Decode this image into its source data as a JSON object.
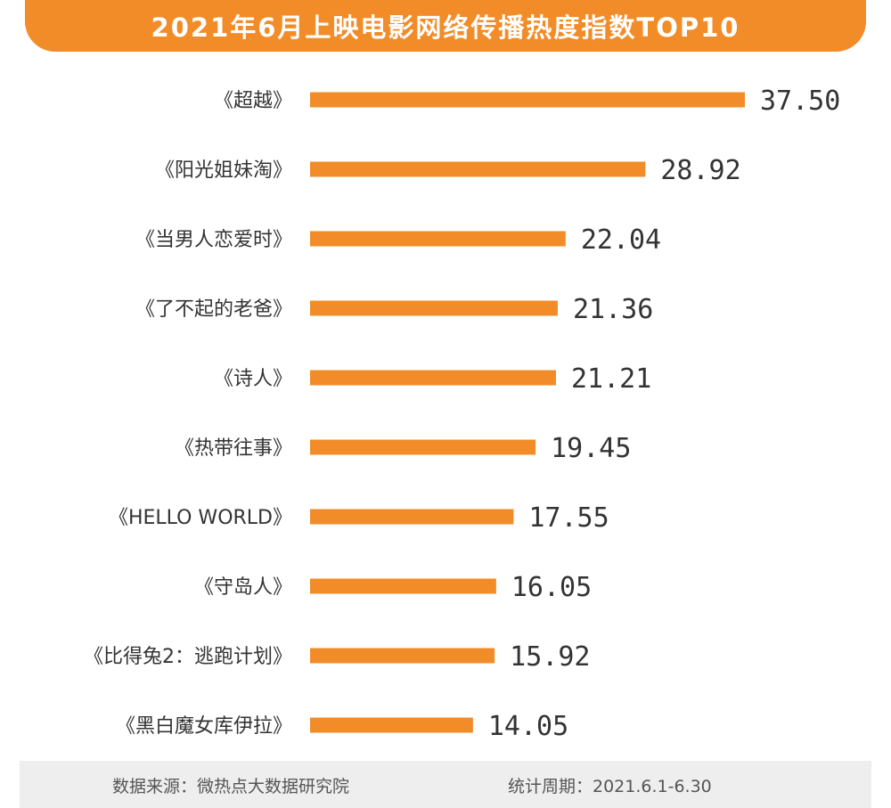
{
  "colors": {
    "accent": "#f28c28",
    "bar": "#f28c28",
    "label": "#333333",
    "value": "#333333",
    "footer_bg": "#eeeeee"
  },
  "chart_data": {
    "type": "bar",
    "orientation": "horizontal",
    "title": "2021年6月上映电影网络传播热度指数TOP10",
    "categories": [
      "《超越》",
      "《阳光姐妹淘》",
      "《当男人恋爱时》",
      "《了不起的老爸》",
      "《诗人》",
      "《热带往事》",
      "《HELLO WORLD》",
      "《守岛人》",
      "《比得兔2：逃跑计划》",
      "《黑白魔女库伊拉》"
    ],
    "values": [
      "37.50",
      "28.92",
      "22.04",
      "21.36",
      "21.21",
      "19.45",
      "17.55",
      "16.05",
      "15.92",
      "14.05"
    ],
    "xlim": [
      0,
      37.5
    ],
    "grid": false,
    "legend": "none"
  },
  "footer": {
    "source": "数据来源：微热点大数据研究院",
    "period": "统计周期：2021.6.1-6.30"
  }
}
